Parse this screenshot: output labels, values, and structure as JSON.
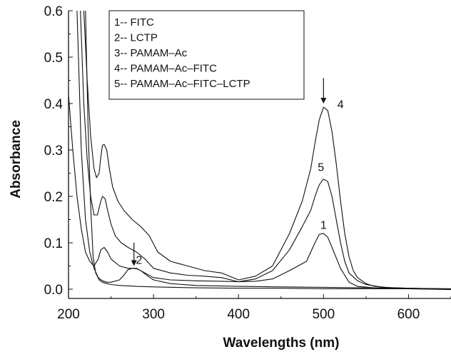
{
  "chart_data": {
    "type": "line",
    "title": "",
    "xlabel": "Wavelengths (nm)",
    "ylabel": "Absorbance",
    "xlim": [
      200,
      650
    ],
    "ylim": [
      -0.02,
      0.6
    ],
    "x_ticks": [
      200,
      300,
      400,
      500,
      600
    ],
    "x_tick_labels": [
      "200",
      "300",
      "400",
      "500",
      "600"
    ],
    "y_ticks": [
      0.0,
      0.1,
      0.2,
      0.3,
      0.4,
      0.5,
      0.6
    ],
    "y_tick_labels": [
      "0.0",
      "0.1",
      "0.2",
      "0.3",
      "0.4",
      "0.5",
      "0.6"
    ],
    "grid": false,
    "legend_position": "top-left",
    "legend": [
      "1-- FITC",
      "2-- LCTP",
      "3-- PAMAM–Ac",
      "4-- PAMAM–Ac–FITC",
      "5-- PAMAM–Ac–FITC–LCTP"
    ],
    "series": [
      {
        "label": "1",
        "x": [
          200,
          205,
          210,
          215,
          220,
          225,
          230,
          235,
          238,
          242,
          246,
          250,
          260,
          270,
          280,
          290,
          300,
          320,
          350,
          380,
          400,
          420,
          440,
          460,
          470,
          480,
          490,
          495,
          500,
          505,
          510,
          520,
          530,
          540,
          560,
          600,
          650
        ],
        "y": [
          0.42,
          0.3,
          0.2,
          0.13,
          0.08,
          0.06,
          0.05,
          0.065,
          0.085,
          0.09,
          0.08,
          0.065,
          0.05,
          0.045,
          0.045,
          0.035,
          0.025,
          0.02,
          0.018,
          0.017,
          0.016,
          0.017,
          0.022,
          0.04,
          0.05,
          0.06,
          0.1,
          0.118,
          0.12,
          0.112,
          0.09,
          0.045,
          0.015,
          0.006,
          0.003,
          0.001,
          -0.001
        ]
      },
      {
        "label": "2",
        "x": [
          210,
          215,
          220,
          225,
          230,
          235,
          240,
          245,
          250,
          260,
          265,
          270,
          275,
          280,
          285,
          290,
          295,
          300,
          320,
          350,
          400,
          450,
          500,
          550,
          600,
          650
        ],
        "y": [
          0.6,
          0.3,
          0.15,
          0.08,
          0.045,
          0.025,
          0.018,
          0.015,
          0.015,
          0.02,
          0.03,
          0.042,
          0.045,
          0.044,
          0.04,
          0.033,
          0.026,
          0.02,
          0.012,
          0.008,
          0.006,
          0.005,
          0.004,
          0.003,
          0.002,
          0.001
        ]
      },
      {
        "label": "3",
        "x": [
          220,
          223,
          226,
          229,
          232,
          236,
          240,
          245,
          250,
          260,
          280,
          300,
          350,
          400,
          450,
          500,
          550,
          600,
          650
        ],
        "y": [
          0.6,
          0.35,
          0.18,
          0.07,
          0.035,
          0.02,
          0.015,
          0.012,
          0.01,
          0.008,
          0.006,
          0.005,
          0.003,
          0.002,
          0.002,
          0.001,
          0.001,
          0.001,
          0.0
        ]
      },
      {
        "label": "4",
        "x": [
          218,
          222,
          226,
          230,
          233,
          236,
          238,
          240,
          242,
          245,
          248,
          252,
          258,
          265,
          275,
          285,
          295,
          305,
          320,
          340,
          360,
          380,
          400,
          420,
          440,
          460,
          475,
          485,
          490,
          495,
          500,
          505,
          510,
          515,
          520,
          525,
          530,
          535,
          540,
          550,
          560,
          580,
          600,
          650
        ],
        "y": [
          0.6,
          0.45,
          0.33,
          0.26,
          0.24,
          0.25,
          0.285,
          0.31,
          0.312,
          0.3,
          0.26,
          0.22,
          0.19,
          0.17,
          0.15,
          0.135,
          0.115,
          0.08,
          0.06,
          0.05,
          0.04,
          0.035,
          0.02,
          0.028,
          0.05,
          0.12,
          0.19,
          0.26,
          0.315,
          0.365,
          0.392,
          0.385,
          0.34,
          0.27,
          0.19,
          0.12,
          0.07,
          0.04,
          0.025,
          0.012,
          0.006,
          0.003,
          0.002,
          0.0
        ]
      },
      {
        "label": "5",
        "x": [
          214,
          218,
          222,
          226,
          230,
          234,
          238,
          240,
          243,
          246,
          250,
          255,
          262,
          270,
          280,
          290,
          300,
          320,
          340,
          360,
          380,
          400,
          420,
          440,
          460,
          475,
          485,
          490,
          495,
          500,
          505,
          510,
          515,
          520,
          525,
          530,
          540,
          550,
          570,
          600,
          650
        ],
        "y": [
          0.6,
          0.4,
          0.28,
          0.2,
          0.16,
          0.16,
          0.19,
          0.2,
          0.195,
          0.17,
          0.14,
          0.115,
          0.1,
          0.09,
          0.08,
          0.065,
          0.045,
          0.035,
          0.03,
          0.028,
          0.025,
          0.016,
          0.022,
          0.04,
          0.085,
          0.135,
          0.17,
          0.2,
          0.225,
          0.237,
          0.232,
          0.2,
          0.15,
          0.1,
          0.06,
          0.035,
          0.018,
          0.01,
          0.004,
          0.002,
          0.0
        ]
      }
    ],
    "annotations": [
      {
        "text": "1",
        "x": 500,
        "y": 0.13
      },
      {
        "text": "2",
        "x": 283,
        "y": 0.055
      },
      {
        "text": "4",
        "x": 520,
        "y": 0.39
      },
      {
        "text": "5",
        "x": 497,
        "y": 0.255
      }
    ],
    "arrows": [
      {
        "x": 500,
        "y_from": 0.455,
        "y_to": 0.4
      },
      {
        "x": 277,
        "y_from": 0.1,
        "y_to": 0.05
      }
    ]
  }
}
